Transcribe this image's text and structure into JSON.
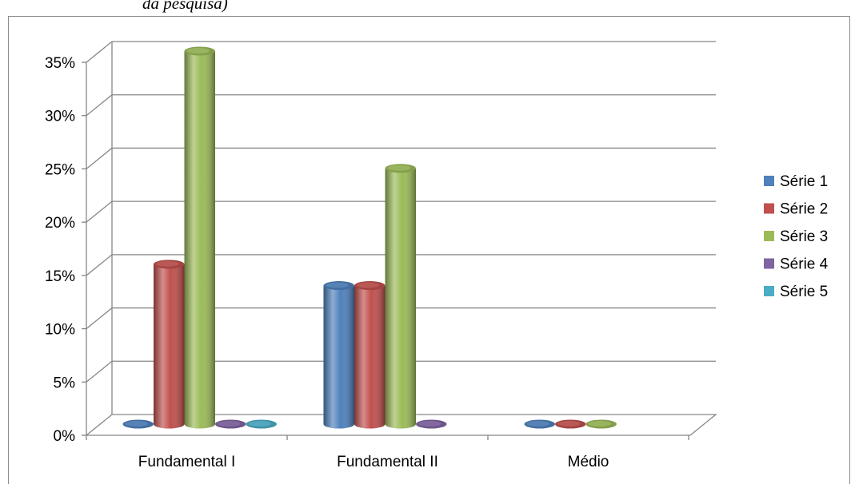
{
  "caption": "da pesquisa)",
  "chart_data": {
    "type": "bar",
    "categories": [
      "Fundamental I",
      "Fundamental II",
      "Médio"
    ],
    "series": [
      {
        "name": "Série 1",
        "values": [
          0,
          13,
          0
        ],
        "color": "#4f81bd"
      },
      {
        "name": "Série 2",
        "values": [
          15,
          13,
          0
        ],
        "color": "#c0504d"
      },
      {
        "name": "Série 3",
        "values": [
          35,
          24,
          0
        ],
        "color": "#9bbb59"
      },
      {
        "name": "Série 4",
        "values": [
          0,
          0,
          null
        ],
        "color": "#8064a2"
      },
      {
        "name": "Série 5",
        "values": [
          0,
          null,
          null
        ],
        "color": "#4bacc6"
      }
    ],
    "yticks": [
      "0%",
      "5%",
      "10%",
      "15%",
      "20%",
      "25%",
      "30%",
      "35%"
    ],
    "ylim": [
      0,
      35
    ],
    "grid": true,
    "legend": "right",
    "style": "3d-cylinder"
  }
}
